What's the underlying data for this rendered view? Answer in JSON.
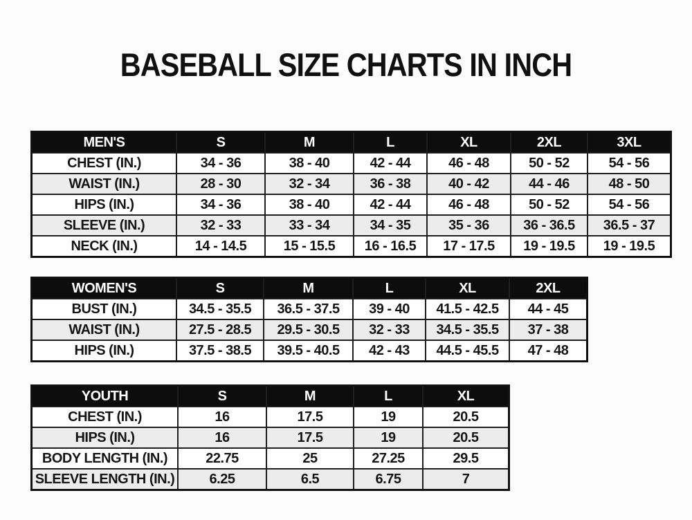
{
  "page": {
    "title": "BASEBALL SIZE CHARTS IN INCH"
  },
  "colors": {
    "page_bg": "#fcfcfc",
    "header_bg": "#0d0d0d",
    "header_text": "#ffffff",
    "row_alt_bg": "#ececec",
    "border": "#1e1e1e",
    "text": "#141414"
  },
  "tables": [
    {
      "id": "mens",
      "header": [
        "MEN'S",
        "S",
        "M",
        "L",
        "XL",
        "2XL",
        "3XL"
      ],
      "rows": [
        {
          "label": "CHEST (IN.)",
          "values": [
            "34 - 36",
            "38 - 40",
            "42 - 44",
            "46 - 48",
            "50 - 52",
            "54 - 56"
          ]
        },
        {
          "label": "WAIST (IN.)",
          "values": [
            "28 - 30",
            "32 - 34",
            "36 - 38",
            "40 - 42",
            "44 - 46",
            "48 - 50"
          ]
        },
        {
          "label": "HIPS (IN.)",
          "values": [
            "34 - 36",
            "38 - 40",
            "42 - 44",
            "46 - 48",
            "50 - 52",
            "54 - 56"
          ]
        },
        {
          "label": "SLEEVE (IN.)",
          "values": [
            "32 - 33",
            "33 - 34",
            "34 - 35",
            "35 - 36",
            "36 - 36.5",
            "36.5 - 37"
          ]
        },
        {
          "label": "NECK (IN.)",
          "values": [
            "14 - 14.5",
            "15 - 15.5",
            "16 - 16.5",
            "17 - 17.5",
            "19 - 19.5",
            "19 - 19.5"
          ]
        }
      ]
    },
    {
      "id": "womens",
      "header": [
        "WOMEN'S",
        "S",
        "M",
        "L",
        "XL",
        "2XL"
      ],
      "rows": [
        {
          "label": "BUST (IN.)",
          "values": [
            "34.5 - 35.5",
            "36.5 - 37.5",
            "39 - 40",
            "41.5 - 42.5",
            "44 - 45"
          ]
        },
        {
          "label": "WAIST (IN.)",
          "values": [
            "27.5 - 28.5",
            "29.5 - 30.5",
            "32 - 33",
            "34.5 - 35.5",
            "37 - 38"
          ]
        },
        {
          "label": "HIPS (IN.)",
          "values": [
            "37.5 - 38.5",
            "39.5 - 40.5",
            "42 - 43",
            "44.5 - 45.5",
            "47 - 48"
          ]
        }
      ]
    },
    {
      "id": "youth",
      "header": [
        "YOUTH",
        "S",
        "M",
        "L",
        "XL"
      ],
      "rows": [
        {
          "label": "CHEST (IN.)",
          "values": [
            "16",
            "17.5",
            "19",
            "20.5"
          ]
        },
        {
          "label": "HIPS (IN.)",
          "values": [
            "16",
            "17.5",
            "19",
            "20.5"
          ]
        },
        {
          "label": "BODY LENGTH (IN.)",
          "values": [
            "22.75",
            "25",
            "27.25",
            "29.5"
          ]
        },
        {
          "label": "SLEEVE LENGTH (IN.)",
          "values": [
            "6.25",
            "6.5",
            "6.75",
            "7"
          ]
        }
      ]
    }
  ]
}
